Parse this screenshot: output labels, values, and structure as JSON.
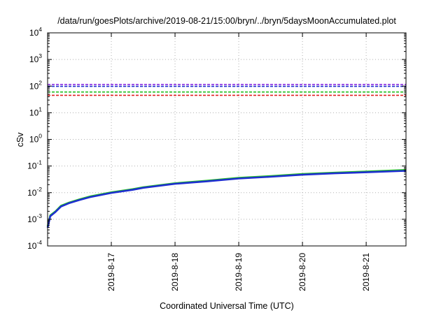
{
  "chart_data": {
    "type": "line",
    "title": "/data/run/goesPlots/archive/2019-08-21/15:00/bryn/../bryn/5daysMoonAccumulated.plot",
    "xlabel": "Coordinated Universal Time (UTC)",
    "ylabel": "cSv",
    "yscale": "log",
    "ylim": [
      0.0001,
      10000
    ],
    "xlim": [
      "2019-08-16T00:00",
      "2019-08-21T15:00"
    ],
    "grid": true,
    "y_ticks": [
      {
        "base": "10",
        "exp": "-4",
        "value": 0.0001
      },
      {
        "base": "10",
        "exp": "-3",
        "value": 0.001
      },
      {
        "base": "10",
        "exp": "-2",
        "value": 0.01
      },
      {
        "base": "10",
        "exp": "-1",
        "value": 0.1
      },
      {
        "base": "10",
        "exp": "0",
        "value": 1
      },
      {
        "base": "10",
        "exp": "1",
        "value": 10
      },
      {
        "base": "10",
        "exp": "2",
        "value": 100
      },
      {
        "base": "10",
        "exp": "3",
        "value": 1000
      },
      {
        "base": "10",
        "exp": "4",
        "value": 10000
      }
    ],
    "x_ticks": [
      {
        "label": "2019-8-17",
        "value": "2019-08-17T00:00"
      },
      {
        "label": "2019-8-18",
        "value": "2019-08-18T00:00"
      },
      {
        "label": "2019-8-19",
        "value": "2019-08-19T00:00"
      },
      {
        "label": "2019-8-20",
        "value": "2019-08-20T00:00"
      },
      {
        "label": "2019-8-21",
        "value": "2019-08-21T00:00"
      }
    ],
    "thresholds": [
      {
        "value": 115,
        "color": "#8a2be2",
        "style": "dashed"
      },
      {
        "value": 98,
        "color": "#1f2fd0",
        "style": "dashed"
      },
      {
        "value": 60,
        "color": "#20c020",
        "style": "dashed"
      },
      {
        "value": 45,
        "color": "#e02020",
        "style": "dashed"
      }
    ],
    "series": [
      {
        "color": "#20c020",
        "points": [
          [
            "2019-08-16T00:00",
            0.00055
          ],
          [
            "2019-08-16T01:00",
            0.0014
          ],
          [
            "2019-08-16T03:00",
            0.002
          ],
          [
            "2019-08-16T05:00",
            0.0032
          ],
          [
            "2019-08-16T08:00",
            0.0042
          ],
          [
            "2019-08-16T12:00",
            0.0056
          ],
          [
            "2019-08-16T16:00",
            0.0072
          ],
          [
            "2019-08-17T00:00",
            0.0103
          ],
          [
            "2019-08-17T08:00",
            0.0135
          ],
          [
            "2019-08-17T12:00",
            0.016
          ],
          [
            "2019-08-18T00:00",
            0.0225
          ],
          [
            "2019-08-18T12:00",
            0.028
          ],
          [
            "2019-08-19T00:00",
            0.036
          ],
          [
            "2019-08-19T12:00",
            0.042
          ],
          [
            "2019-08-20T00:00",
            0.05
          ],
          [
            "2019-08-20T12:00",
            0.056
          ],
          [
            "2019-08-21T00:00",
            0.062
          ],
          [
            "2019-08-21T15:00",
            0.071
          ]
        ]
      },
      {
        "color": "#1f2fd0",
        "points": [
          [
            "2019-08-16T00:00",
            0.00048
          ],
          [
            "2019-08-16T01:00",
            0.0013
          ],
          [
            "2019-08-16T03:00",
            0.0019
          ],
          [
            "2019-08-16T05:00",
            0.003
          ],
          [
            "2019-08-16T08:00",
            0.004
          ],
          [
            "2019-08-16T12:00",
            0.0053
          ],
          [
            "2019-08-16T16:00",
            0.0068
          ],
          [
            "2019-08-17T00:00",
            0.0098
          ],
          [
            "2019-08-17T08:00",
            0.0128
          ],
          [
            "2019-08-17T12:00",
            0.0152
          ],
          [
            "2019-08-18T00:00",
            0.0215
          ],
          [
            "2019-08-18T12:00",
            0.0265
          ],
          [
            "2019-08-19T00:00",
            0.034
          ],
          [
            "2019-08-19T12:00",
            0.0395
          ],
          [
            "2019-08-20T00:00",
            0.047
          ],
          [
            "2019-08-20T12:00",
            0.053
          ],
          [
            "2019-08-21T00:00",
            0.058
          ],
          [
            "2019-08-21T15:00",
            0.066
          ]
        ]
      }
    ]
  }
}
